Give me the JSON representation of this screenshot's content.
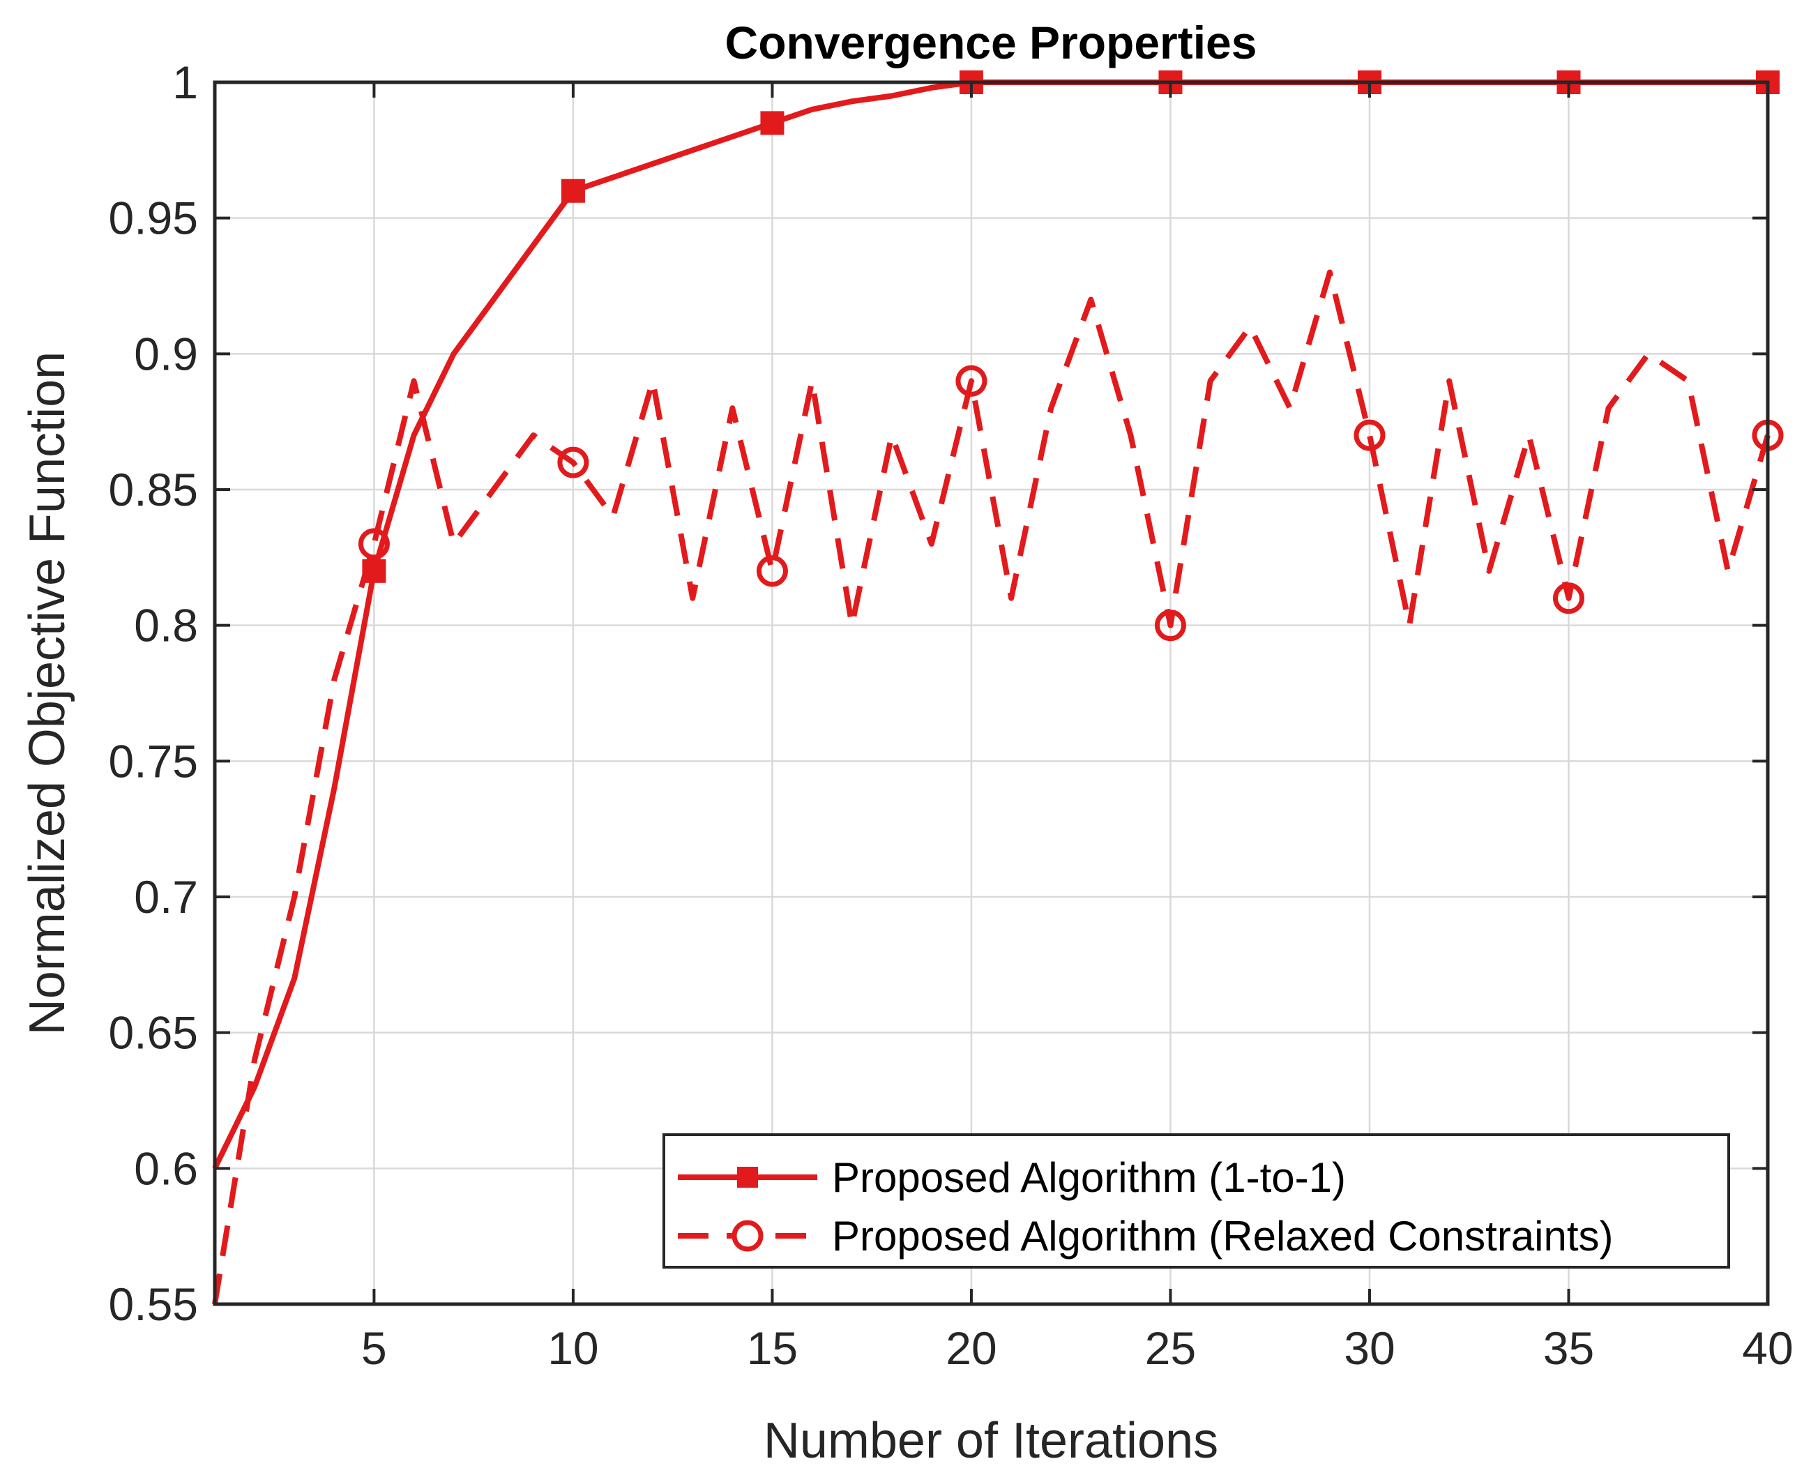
{
  "chart_data": {
    "type": "line",
    "title": "Convergence Properties",
    "xlabel": "Number of Iterations",
    "ylabel": "Normalized Objective Function",
    "xlim": [
      1,
      40
    ],
    "ylim": [
      0.55,
      1
    ],
    "grid": true,
    "xticks": [
      5,
      10,
      15,
      20,
      25,
      30,
      35,
      40
    ],
    "xtick_labels": [
      "5",
      "10",
      "15",
      "20",
      "25",
      "30",
      "35",
      "40"
    ],
    "yticks": [
      0.55,
      0.6,
      0.65,
      0.7,
      0.75,
      0.8,
      0.85,
      0.9,
      0.95,
      1
    ],
    "ytick_labels": [
      "0.55",
      "0.6",
      "0.65",
      "0.7",
      "0.75",
      "0.8",
      "0.85",
      "0.9",
      "0.95",
      "1"
    ],
    "legend_position": "bottom-right",
    "series": [
      {
        "name": "Proposed Algorithm (1-to-1)",
        "color": "#e31a1c",
        "line_style": "solid",
        "marker": "square",
        "x": [
          1,
          2,
          3,
          4,
          5,
          6,
          7,
          8,
          9,
          10,
          11,
          12,
          13,
          14,
          15,
          16,
          17,
          18,
          19,
          20,
          21,
          22,
          23,
          24,
          25,
          26,
          27,
          28,
          29,
          30,
          31,
          32,
          33,
          34,
          35,
          36,
          37,
          38,
          39,
          40
        ],
        "y": [
          0.6,
          0.63,
          0.67,
          0.74,
          0.82,
          0.87,
          0.9,
          0.92,
          0.94,
          0.96,
          0.965,
          0.97,
          0.975,
          0.98,
          0.985,
          0.99,
          0.993,
          0.995,
          0.998,
          1,
          1,
          1,
          1,
          1,
          1,
          1,
          1,
          1,
          1,
          1,
          1,
          1,
          1,
          1,
          1,
          1,
          1,
          1,
          1,
          1
        ],
        "marker_x": [
          5,
          10,
          15,
          20,
          25,
          30,
          35,
          40
        ]
      },
      {
        "name": "Proposed Algorithm (Relaxed Constraints)",
        "color": "#e31a1c",
        "line_style": "dashed",
        "marker": "circle",
        "x": [
          1,
          2,
          3,
          4,
          5,
          6,
          7,
          8,
          9,
          10,
          11,
          12,
          13,
          14,
          15,
          16,
          17,
          18,
          19,
          20,
          21,
          22,
          23,
          24,
          25,
          26,
          27,
          28,
          29,
          30,
          31,
          32,
          33,
          34,
          35,
          36,
          37,
          38,
          39,
          40
        ],
        "y": [
          0.55,
          0.64,
          0.7,
          0.78,
          0.83,
          0.89,
          0.83,
          0.85,
          0.87,
          0.86,
          0.84,
          0.89,
          0.81,
          0.88,
          0.82,
          0.89,
          0.8,
          0.87,
          0.83,
          0.89,
          0.81,
          0.88,
          0.92,
          0.87,
          0.8,
          0.89,
          0.91,
          0.88,
          0.93,
          0.87,
          0.8,
          0.89,
          0.82,
          0.87,
          0.81,
          0.88,
          0.9,
          0.89,
          0.82,
          0.87
        ],
        "marker_x": [
          5,
          10,
          15,
          20,
          25,
          30,
          35,
          40
        ]
      }
    ]
  }
}
